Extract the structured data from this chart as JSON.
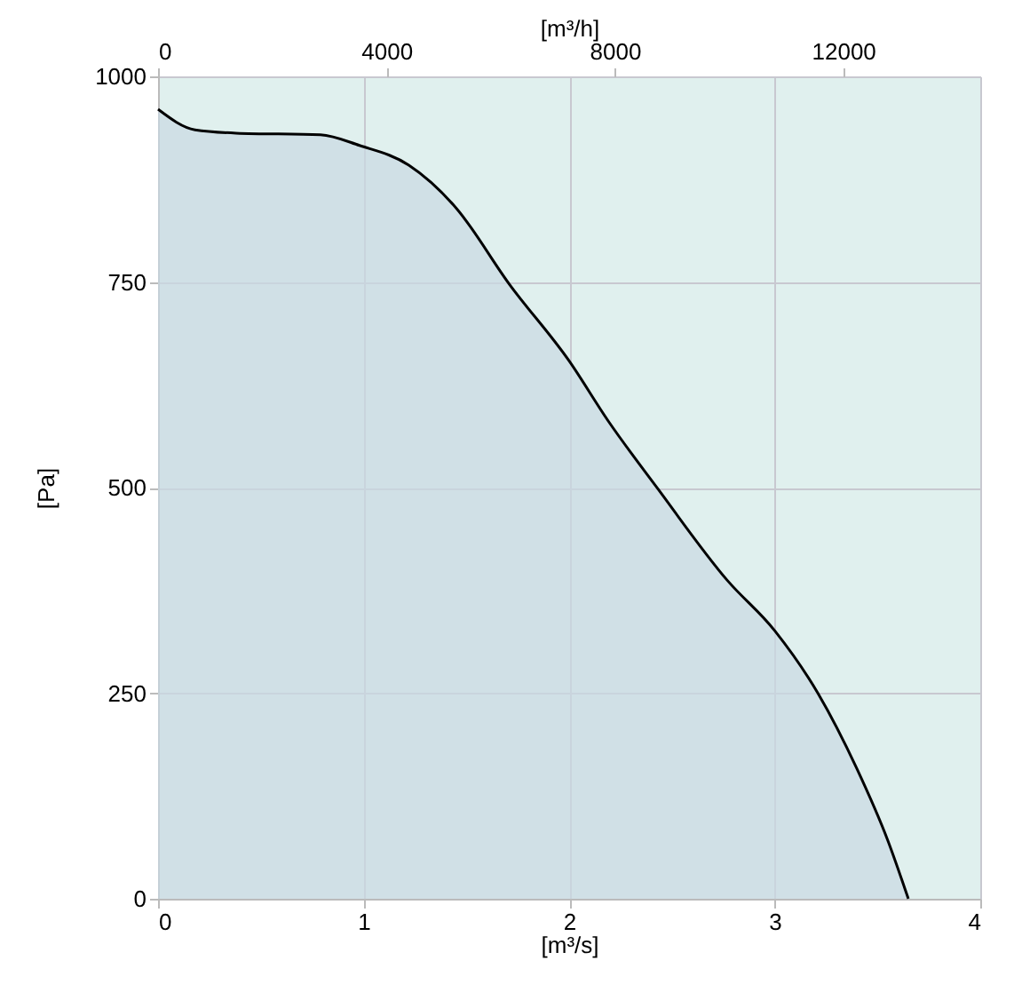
{
  "chart_data": {
    "type": "area",
    "xlabel": "[m³/s]",
    "ylabel": "[Pa]",
    "x2label": "[m³/h]",
    "x": [
      0,
      0.18,
      0.38,
      0.79,
      0.98,
      1.22,
      1.45,
      1.71,
      2.0,
      2.19,
      2.43,
      2.77,
      3.0,
      3.21,
      3.4,
      3.55,
      3.65
    ],
    "series": [
      {
        "color": "#c9d9e3",
        "values": [
          960,
          935,
          931,
          929,
          916,
          892,
          840,
          747,
          654,
          581,
          499,
          387,
          326,
          250,
          158,
          71,
          0
        ]
      }
    ],
    "xlim": [
      0,
      4
    ],
    "xticks": [
      0,
      1,
      2,
      3,
      4
    ],
    "ylim": [
      0,
      1000
    ],
    "yticks": [
      0,
      250,
      500,
      750,
      1000
    ],
    "x2lim": [
      0,
      14400
    ],
    "x2ticks": [
      0,
      4000,
      8000,
      12000
    ],
    "grid": true
  }
}
